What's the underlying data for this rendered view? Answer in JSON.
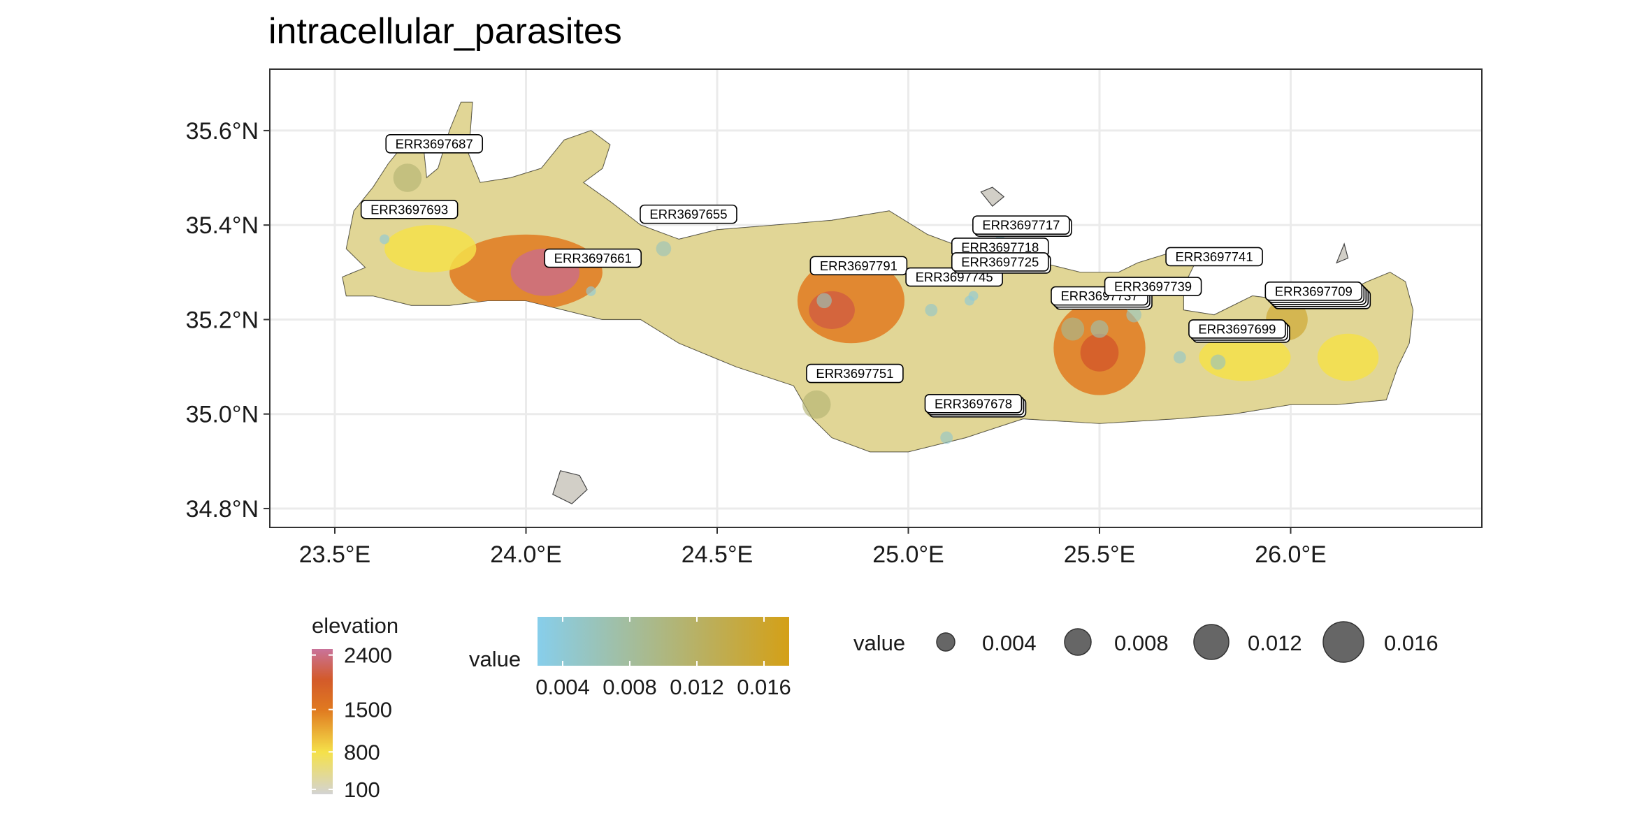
{
  "chart_data": {
    "type": "map",
    "title": "intracellular_parasites",
    "xlim": [
      23.33,
      26.5
    ],
    "ylim": [
      34.76,
      35.73
    ],
    "x_ticks": [
      {
        "value": 23.5,
        "label": "23.5°E"
      },
      {
        "value": 24.0,
        "label": "24.0°E"
      },
      {
        "value": 24.5,
        "label": "24.5°E"
      },
      {
        "value": 25.0,
        "label": "25.0°E"
      },
      {
        "value": 25.5,
        "label": "25.5°E"
      },
      {
        "value": 26.0,
        "label": "26.0°E"
      }
    ],
    "y_ticks": [
      {
        "value": 34.8,
        "label": "34.8°N"
      },
      {
        "value": 35.0,
        "label": "35.0°N"
      },
      {
        "value": 35.2,
        "label": "35.2°N"
      },
      {
        "value": 35.4,
        "label": "35.4°N"
      },
      {
        "value": 35.6,
        "label": "35.6°N"
      }
    ],
    "land_color": "#d2cfc7",
    "land_outline": [
      [
        23.58,
        35.31
      ],
      [
        23.53,
        35.35
      ],
      [
        23.55,
        35.43
      ],
      [
        23.6,
        35.48
      ],
      [
        23.64,
        35.53
      ],
      [
        23.68,
        35.57
      ],
      [
        23.73,
        35.58
      ],
      [
        23.74,
        35.5
      ],
      [
        23.77,
        35.52
      ],
      [
        23.8,
        35.6
      ],
      [
        23.83,
        35.66
      ],
      [
        23.86,
        35.66
      ],
      [
        23.85,
        35.55
      ],
      [
        23.88,
        35.49
      ],
      [
        23.96,
        35.5
      ],
      [
        24.04,
        35.52
      ],
      [
        24.1,
        35.58
      ],
      [
        24.17,
        35.6
      ],
      [
        24.22,
        35.57
      ],
      [
        24.2,
        35.52
      ],
      [
        24.15,
        35.49
      ],
      [
        24.22,
        35.45
      ],
      [
        24.3,
        35.4
      ],
      [
        24.4,
        35.37
      ],
      [
        24.5,
        35.39
      ],
      [
        24.65,
        35.4
      ],
      [
        24.8,
        35.41
      ],
      [
        24.95,
        35.43
      ],
      [
        25.05,
        35.38
      ],
      [
        25.15,
        35.35
      ],
      [
        25.25,
        35.33
      ],
      [
        25.35,
        35.32
      ],
      [
        25.45,
        35.3
      ],
      [
        25.55,
        35.3
      ],
      [
        25.6,
        35.32
      ],
      [
        25.68,
        35.34
      ],
      [
        25.75,
        35.32
      ],
      [
        25.72,
        35.27
      ],
      [
        25.72,
        35.22
      ],
      [
        25.8,
        35.21
      ],
      [
        25.9,
        35.25
      ],
      [
        26.0,
        35.24
      ],
      [
        26.1,
        35.24
      ],
      [
        26.2,
        35.28
      ],
      [
        26.26,
        35.3
      ],
      [
        26.3,
        35.28
      ],
      [
        26.32,
        35.22
      ],
      [
        26.31,
        35.15
      ],
      [
        26.28,
        35.1
      ],
      [
        26.25,
        35.03
      ],
      [
        26.12,
        35.02
      ],
      [
        26.0,
        35.02
      ],
      [
        25.85,
        35.0
      ],
      [
        25.7,
        34.99
      ],
      [
        25.5,
        34.98
      ],
      [
        25.3,
        34.99
      ],
      [
        25.15,
        34.95
      ],
      [
        25.0,
        34.92
      ],
      [
        24.9,
        34.92
      ],
      [
        24.8,
        34.95
      ],
      [
        24.75,
        34.99
      ],
      [
        24.7,
        35.06
      ],
      [
        24.55,
        35.1
      ],
      [
        24.4,
        35.15
      ],
      [
        24.3,
        35.2
      ],
      [
        24.2,
        35.2
      ],
      [
        24.1,
        35.22
      ],
      [
        24.0,
        35.24
      ],
      [
        23.9,
        35.24
      ],
      [
        23.8,
        35.23
      ],
      [
        23.7,
        35.23
      ],
      [
        23.6,
        35.25
      ],
      [
        23.53,
        35.25
      ],
      [
        23.52,
        35.29
      ]
    ],
    "islets": [
      [
        [
          24.07,
          34.83
        ],
        [
          24.09,
          34.88
        ],
        [
          24.14,
          34.87
        ],
        [
          24.16,
          34.84
        ],
        [
          24.12,
          34.81
        ]
      ],
      [
        [
          25.19,
          35.47
        ],
        [
          25.22,
          35.48
        ],
        [
          25.25,
          35.46
        ],
        [
          25.22,
          35.44
        ]
      ],
      [
        [
          26.12,
          35.32
        ],
        [
          26.14,
          35.36
        ],
        [
          26.15,
          35.33
        ]
      ]
    ],
    "elevation_patches": [
      {
        "lon": 24.0,
        "lat": 35.3,
        "rx": 0.2,
        "ry": 0.08,
        "level": 1500
      },
      {
        "lon": 24.05,
        "lat": 35.3,
        "rx": 0.09,
        "ry": 0.05,
        "level": 2400
      },
      {
        "lon": 24.85,
        "lat": 35.24,
        "rx": 0.14,
        "ry": 0.09,
        "level": 1500
      },
      {
        "lon": 24.8,
        "lat": 35.22,
        "rx": 0.06,
        "ry": 0.04,
        "level": 2100
      },
      {
        "lon": 25.5,
        "lat": 35.14,
        "rx": 0.12,
        "ry": 0.1,
        "level": 1500
      },
      {
        "lon": 25.5,
        "lat": 35.13,
        "rx": 0.05,
        "ry": 0.04,
        "level": 2000
      },
      {
        "lon": 23.75,
        "lat": 35.35,
        "rx": 0.12,
        "ry": 0.05,
        "level": 800
      },
      {
        "lon": 25.88,
        "lat": 35.12,
        "rx": 0.12,
        "ry": 0.05,
        "level": 800
      },
      {
        "lon": 26.15,
        "lat": 35.12,
        "rx": 0.08,
        "ry": 0.05,
        "level": 800
      }
    ],
    "points": [
      {
        "id": "ERR3697687",
        "lon": 23.69,
        "lat": 35.5,
        "value": 0.011
      },
      {
        "id": "ERR3697693",
        "lon": 23.63,
        "lat": 35.37,
        "value": 0.004
      },
      {
        "id": "ERR3697655",
        "lon": 24.36,
        "lat": 35.35,
        "value": 0.006
      },
      {
        "id": "ERR3697661",
        "lon": 24.17,
        "lat": 35.26,
        "value": 0.004
      },
      {
        "id": "ERR3697791",
        "lon": 24.78,
        "lat": 35.24,
        "value": 0.006
      },
      {
        "id": "ERR3697751",
        "lon": 24.76,
        "lat": 35.02,
        "value": 0.011
      },
      {
        "id": "ERR3697745",
        "lon": 25.06,
        "lat": 35.22,
        "value": 0.005
      },
      {
        "id": "ERR3697678",
        "lon": 25.1,
        "lat": 34.95,
        "value": 0.005
      },
      {
        "id": "ERR3697718",
        "lon": 25.17,
        "lat": 35.25,
        "value": 0.004
      },
      {
        "id": "ERR3697725",
        "lon": 25.16,
        "lat": 35.24,
        "value": 0.004
      },
      {
        "id": "ERR3697717",
        "lon": 25.24,
        "lat": 35.38,
        "value": 0.004
      },
      {
        "id": "ERR3697737",
        "lon": 25.5,
        "lat": 35.18,
        "value": 0.007
      },
      {
        "id": "ERR3697739",
        "lon": 25.59,
        "lat": 35.21,
        "value": 0.006
      },
      {
        "id": "ERR3697741",
        "lon": 25.75,
        "lat": 35.26,
        "value": 0.004
      },
      {
        "id": "ERR3697699",
        "lon": 25.81,
        "lat": 35.11,
        "value": 0.006
      },
      {
        "id": "ERR3697709",
        "lon": 25.99,
        "lat": 35.2,
        "value": 0.016
      }
    ],
    "extra_points": [
      {
        "lon": 25.43,
        "lat": 35.18,
        "value": 0.009
      },
      {
        "lon": 25.71,
        "lat": 35.12,
        "value": 0.005
      }
    ],
    "labels": [
      {
        "text": "ERR3697687",
        "lon": 23.76,
        "lat": 35.572,
        "stack": 1
      },
      {
        "text": "ERR3697693",
        "lon": 23.695,
        "lat": 35.433,
        "stack": 1
      },
      {
        "text": "ERR3697655",
        "lon": 24.425,
        "lat": 35.423,
        "stack": 1
      },
      {
        "text": "ERR3697661",
        "lon": 24.175,
        "lat": 35.33,
        "stack": 1
      },
      {
        "text": "ERR3697791",
        "lon": 24.87,
        "lat": 35.314,
        "stack": 1
      },
      {
        "text": "ERR3697751",
        "lon": 24.86,
        "lat": 35.086,
        "stack": 1
      },
      {
        "text": "ERR3697745",
        "lon": 25.12,
        "lat": 35.29,
        "stack": 1
      },
      {
        "text": "ERR3697678",
        "lon": 25.17,
        "lat": 35.022,
        "stack": 3
      },
      {
        "text": "ERR3697718",
        "lon": 25.24,
        "lat": 35.353,
        "stack": 1
      },
      {
        "text": "ERR3697725",
        "lon": 25.24,
        "lat": 35.322,
        "stack": 2
      },
      {
        "text": "ERR3697717",
        "lon": 25.295,
        "lat": 35.4,
        "stack": 2
      },
      {
        "text": "ERR3697737",
        "lon": 25.5,
        "lat": 35.25,
        "stack": 3
      },
      {
        "text": "ERR3697739",
        "lon": 25.64,
        "lat": 35.27,
        "stack": 1
      },
      {
        "text": "ERR3697741",
        "lon": 25.8,
        "lat": 35.333,
        "stack": 1
      },
      {
        "text": "ERR3697699",
        "lon": 25.86,
        "lat": 35.18,
        "stack": 3
      },
      {
        "text": "ERR3697709",
        "lon": 26.06,
        "lat": 35.26,
        "stack": 5
      }
    ],
    "legend": {
      "elevation": {
        "title": "elevation",
        "breaks": [
          {
            "value": 2400,
            "label": "2400"
          },
          {
            "value": 1500,
            "label": "1500"
          },
          {
            "value": 800,
            "label": "800"
          },
          {
            "value": 100,
            "label": "100"
          }
        ],
        "range": [
          100,
          2500
        ],
        "colors": [
          "#d3d3d3",
          "#f5e14a",
          "#e07a20",
          "#d35a2a",
          "#c9739a"
        ]
      },
      "color": {
        "title": "value",
        "breaks": [
          {
            "value": 0.004,
            "label": "0.004"
          },
          {
            "value": 0.008,
            "label": "0.008"
          },
          {
            "value": 0.012,
            "label": "0.012"
          },
          {
            "value": 0.016,
            "label": "0.016"
          }
        ],
        "range": [
          0.0025,
          0.0175
        ],
        "low": "#87ceeb",
        "high": "#d4a017"
      },
      "size": {
        "title": "value",
        "breaks": [
          {
            "value": 0.004,
            "label": "0.004"
          },
          {
            "value": 0.008,
            "label": "0.008"
          },
          {
            "value": 0.012,
            "label": "0.012"
          },
          {
            "value": 0.016,
            "label": "0.016"
          }
        ]
      }
    }
  }
}
